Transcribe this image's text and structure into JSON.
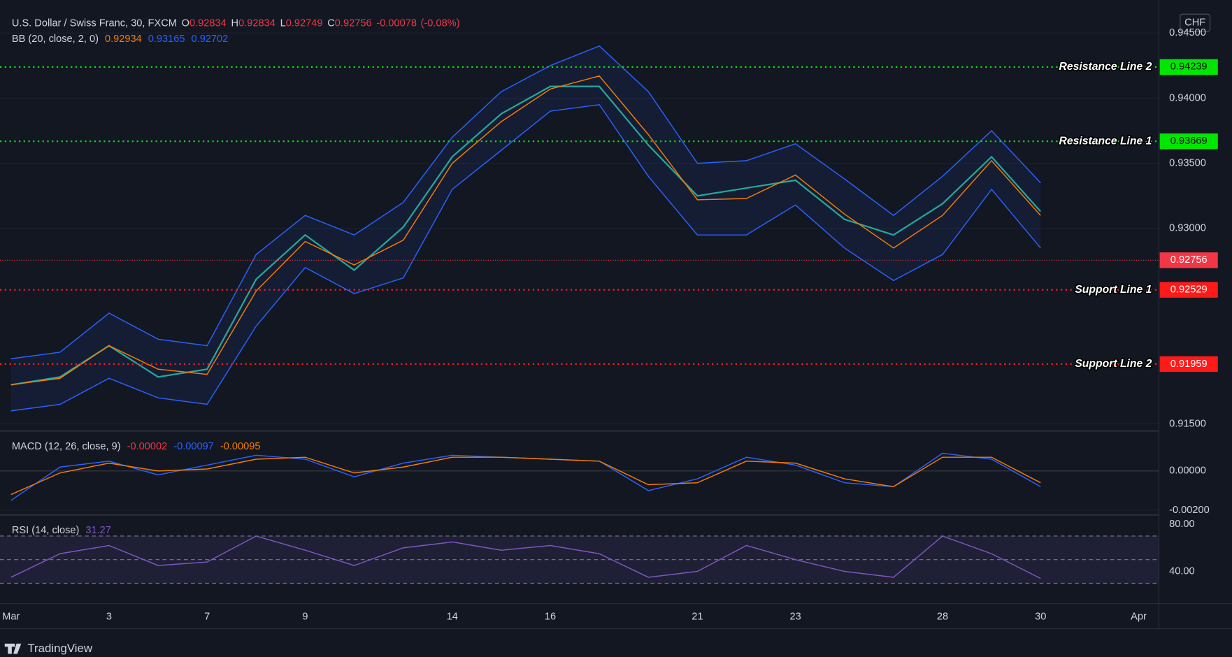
{
  "header": {
    "brand": "TradingView",
    "currency": "CHF"
  },
  "chart_data": [
    {
      "type": "line",
      "title": "U.S. Dollar / Swiss Franc, 30, FXCM",
      "quote": [
        {
          "label": "O",
          "value": 0.92834
        },
        {
          "label": "H",
          "value": 0.92834
        },
        {
          "label": "L",
          "value": 0.92749
        },
        {
          "label": "C",
          "value": 0.92756
        }
      ],
      "change": -0.00078,
      "change_pct": {
        "value": -0.08,
        "label": "(-0.08%)"
      },
      "indicator": "BB (20, close, 2, 0)",
      "categories": [
        "Mar",
        null,
        "3",
        null,
        "7",
        null,
        "9",
        null,
        null,
        "14",
        null,
        "16",
        null,
        null,
        "21",
        null,
        "23",
        null,
        null,
        "28",
        null,
        "30",
        null,
        "Apr"
      ],
      "series": [
        {
          "color": "#26a69a",
          "values": [
            0.918,
            0.9186,
            0.921,
            0.9186,
            0.9192,
            0.9261,
            0.9295,
            0.9268,
            0.9301,
            0.9355,
            0.9388,
            0.9409,
            0.9409,
            0.9364,
            0.9325,
            0.9331,
            0.9337,
            0.9307,
            0.9295,
            0.9319,
            0.9355,
            0.9313,
            null,
            null
          ]
        },
        {
          "color": "#f57c00",
          "last_value": 0.92934,
          "values": [
            0.918,
            0.9185,
            0.921,
            0.9192,
            0.9188,
            0.9252,
            0.929,
            0.9272,
            0.9291,
            0.935,
            0.9382,
            0.9407,
            0.9417,
            0.9372,
            0.9322,
            0.9323,
            0.9341,
            0.9311,
            0.9285,
            0.931,
            0.9352,
            0.931,
            null,
            null
          ]
        },
        {
          "color": "#2962ff",
          "last_value": 0.93165,
          "values": [
            0.92,
            0.9205,
            0.9235,
            0.9215,
            0.921,
            0.928,
            0.931,
            0.9295,
            0.932,
            0.937,
            0.9405,
            0.9425,
            0.944,
            0.9405,
            0.935,
            0.9352,
            0.9365,
            0.9338,
            0.931,
            0.934,
            0.9375,
            0.9335,
            null,
            null
          ]
        },
        {
          "color": "#2962ff",
          "last_value": 0.92702,
          "values": [
            0.916,
            0.9165,
            0.9185,
            0.917,
            0.9165,
            0.9225,
            0.927,
            0.925,
            0.9262,
            0.933,
            0.936,
            0.939,
            0.9395,
            0.934,
            0.9295,
            0.9295,
            0.9318,
            0.9285,
            0.926,
            0.928,
            0.933,
            0.9285,
            null,
            null
          ]
        }
      ],
      "ylim": [
        0.91452,
        0.94693
      ],
      "yticks": [
        {
          "value": 0.915,
          "label": "0.91500"
        },
        {
          "value": 0.93,
          "label": "0.93000"
        },
        {
          "value": 0.935,
          "label": "0.93500"
        },
        {
          "value": 0.94,
          "label": "0.94000"
        },
        {
          "value": 0.945,
          "label": "0.94500"
        }
      ],
      "grid": true,
      "levels": [
        {
          "label": "Resistance Line 2",
          "value": 0.94239,
          "color": "#00e600"
        },
        {
          "label": "Resistance Line 1",
          "value": 0.93669,
          "color": "#00e600"
        },
        {
          "label": "Support Line 1",
          "value": 0.92529,
          "color": "#ff1a1a"
        },
        {
          "label": "Support Line 2",
          "value": 0.91959,
          "color": "#ff1a1a"
        }
      ],
      "last_price": {
        "value": 0.92756,
        "color": "#f23645"
      }
    },
    {
      "type": "macd",
      "title": "MACD (12, 26, close, 9)",
      "histogram_last": {
        "value": -2e-05,
        "color": "#f23645"
      },
      "series": [
        {
          "color": "#2962ff",
          "last_value": -0.00097,
          "values": [
            -0.0015,
            0.0002,
            0.0005,
            -0.0002,
            0.0003,
            0.0008,
            0.0006,
            -0.0003,
            0.0004,
            0.0008,
            0.0007,
            0.0006,
            0.0005,
            -0.001,
            -0.0004,
            0.0007,
            0.0003,
            -0.0006,
            -0.0008,
            0.0009,
            0.0006,
            -0.0008,
            null,
            null
          ]
        },
        {
          "color": "#f57c00",
          "last_value": -0.00095,
          "values": [
            -0.0012,
            -0.0001,
            0.0004,
            0.0,
            0.0001,
            0.0006,
            0.0007,
            -0.0001,
            0.0002,
            0.0007,
            0.0007,
            0.0006,
            0.0005,
            -0.0007,
            -0.0006,
            0.0005,
            0.0004,
            -0.0004,
            -0.0008,
            0.0007,
            0.0007,
            -0.0006,
            null,
            null
          ]
        }
      ],
      "ylim": [
        -0.0022,
        0.002
      ],
      "yticks": [
        {
          "value": 0,
          "label": "0.00000"
        },
        {
          "value": -0.002,
          "label": "-0.00200"
        }
      ],
      "grid": true
    },
    {
      "type": "line",
      "title": "RSI (14, close)",
      "series": [
        {
          "color": "#7e57c2",
          "last_value": 31.27,
          "values": [
            35,
            55,
            62,
            45,
            48,
            70,
            58,
            45,
            60,
            65,
            58,
            62,
            55,
            35,
            40,
            62,
            50,
            40,
            35,
            70,
            55,
            34,
            null,
            null
          ]
        }
      ],
      "ylim": [
        13.3,
        87.3
      ],
      "yticks": [
        {
          "value": 80,
          "label": "80.00"
        },
        {
          "value": 40,
          "label": "40.00"
        }
      ],
      "bands": [
        70,
        50,
        30
      ],
      "grid": false
    }
  ]
}
